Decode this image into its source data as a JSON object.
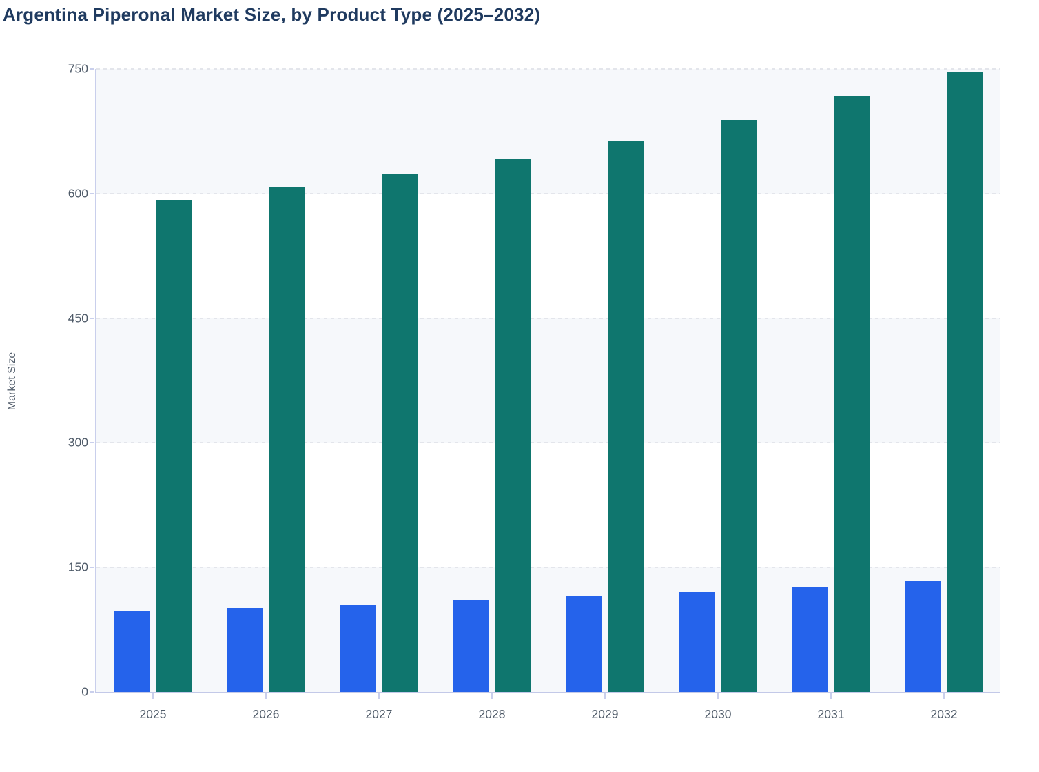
{
  "page": {
    "title": "Argentina Piperonal Market Size, by Product Type (2025–2032)"
  },
  "chart_data": {
    "type": "bar",
    "title": "Argentina Piperonal Market Size, by Product Type (2025–2032)",
    "xlabel": "",
    "ylabel": "Market Size",
    "categories": [
      "2025",
      "2026",
      "2027",
      "2028",
      "2029",
      "2030",
      "2031",
      "2032"
    ],
    "series": [
      {
        "id": "series-blue",
        "color": "#2563eb",
        "values": [
          97,
          101,
          105,
          110,
          115,
          120,
          126,
          134
        ]
      },
      {
        "id": "series-teal",
        "color": "#0f766e",
        "values": [
          592,
          607,
          624,
          642,
          664,
          689,
          717,
          747
        ]
      }
    ],
    "ylim": [
      0,
      750
    ],
    "y_ticks": [
      0,
      150,
      300,
      450,
      600,
      750
    ],
    "grid": "dashed horizontal gridlines at each y tick",
    "legend": "none visible",
    "style": {
      "band_fill": "#f6f8fb",
      "band_alt_fill": "#ffffff",
      "gridline_color": "#e3e5eb",
      "axis_line_color": "#c9cfec",
      "baseline_color": "#c3c9e8",
      "tick_label_color": "#4e5a68",
      "title_color": "#1f3a5f",
      "y_axis_title_color": "#55606e",
      "background": "#ffffff"
    }
  }
}
